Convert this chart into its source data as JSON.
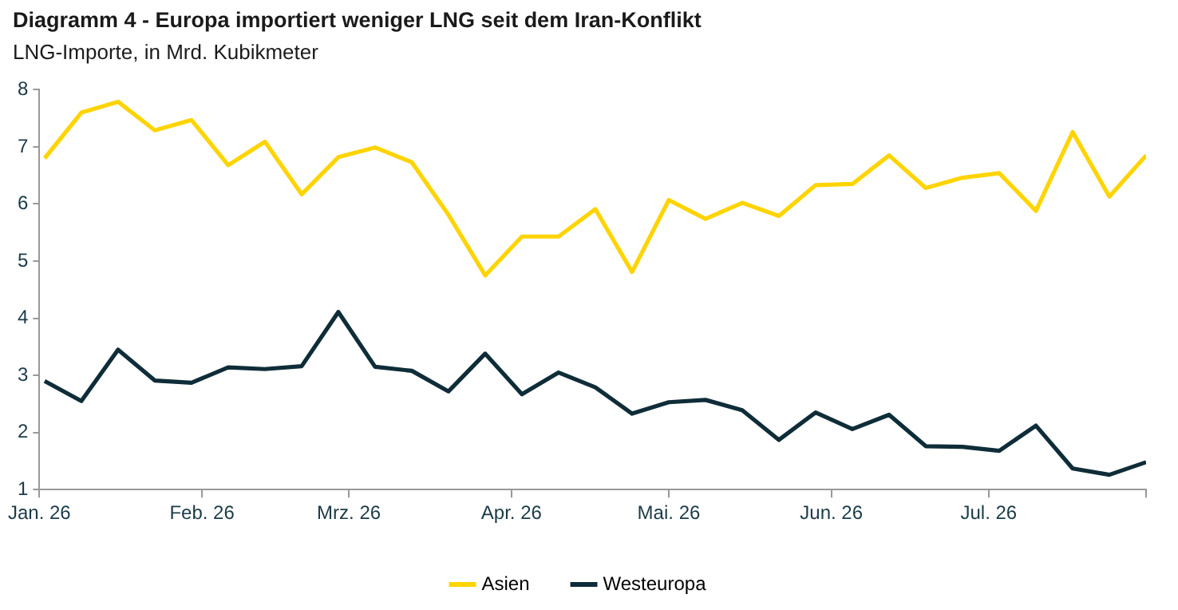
{
  "chart_data": {
    "type": "line",
    "title": "Diagramm 4 - Europa importiert weniger LNG seit dem Iran-Konflikt",
    "subtitle": "LNG-Importe, in Mrd. Kubikmeter",
    "x": [
      "2026-01-02",
      "2026-01-09",
      "2026-01-16",
      "2026-01-23",
      "2026-01-30",
      "2026-02-06",
      "2026-02-13",
      "2026-02-20",
      "2026-02-27",
      "2026-03-06",
      "2026-03-13",
      "2026-03-20",
      "2026-03-27",
      "2026-04-03",
      "2026-04-10",
      "2026-04-17",
      "2026-04-24",
      "2026-05-01",
      "2026-05-08",
      "2026-05-15",
      "2026-05-22",
      "2026-05-29",
      "2026-06-05",
      "2026-06-12",
      "2026-06-19",
      "2026-06-26",
      "2026-07-03",
      "2026-07-10",
      "2026-07-17",
      "2026-07-24",
      "2026-07-31"
    ],
    "series": [
      {
        "name": "Asien",
        "color": "#ffd400",
        "values": [
          6.8,
          7.6,
          7.79,
          7.29,
          7.47,
          6.68,
          7.09,
          6.17,
          6.82,
          6.99,
          6.73,
          5.81,
          4.75,
          5.43,
          5.43,
          5.91,
          4.81,
          6.07,
          5.74,
          6.02,
          5.79,
          6.33,
          6.35,
          6.85,
          6.28,
          6.46,
          6.54,
          5.88,
          7.26,
          6.13,
          6.85
        ]
      },
      {
        "name": "Westeuropa",
        "color": "#0f2d38",
        "values": [
          2.9,
          2.55,
          3.45,
          2.91,
          2.87,
          3.14,
          3.11,
          3.16,
          4.11,
          3.15,
          3.08,
          2.72,
          3.38,
          2.67,
          3.05,
          2.79,
          2.33,
          2.53,
          2.57,
          2.39,
          1.87,
          2.35,
          2.06,
          2.31,
          1.76,
          1.75,
          1.68,
          2.12,
          1.37,
          1.26,
          1.48
        ]
      }
    ],
    "xlim": [
      "2026-01-01",
      "2026-07-31"
    ],
    "xticks": [
      {
        "value": "2026-01-01",
        "label": "Jan. 26"
      },
      {
        "value": "2026-02-01",
        "label": "Feb. 26"
      },
      {
        "value": "2026-03-01",
        "label": "Mrz. 26"
      },
      {
        "value": "2026-04-01",
        "label": "Apr. 26"
      },
      {
        "value": "2026-05-01",
        "label": "Mai. 26"
      },
      {
        "value": "2026-06-01",
        "label": "Jun. 26"
      },
      {
        "value": "2026-07-01",
        "label": "Jul. 26"
      },
      {
        "value": "2026-07-31",
        "label": null
      }
    ],
    "ylim": [
      1,
      8
    ],
    "yticks": [
      1,
      2,
      3,
      4,
      5,
      6,
      7,
      8
    ],
    "grid": false,
    "legend": "bottom",
    "marker": "none",
    "line_style": "solid"
  }
}
